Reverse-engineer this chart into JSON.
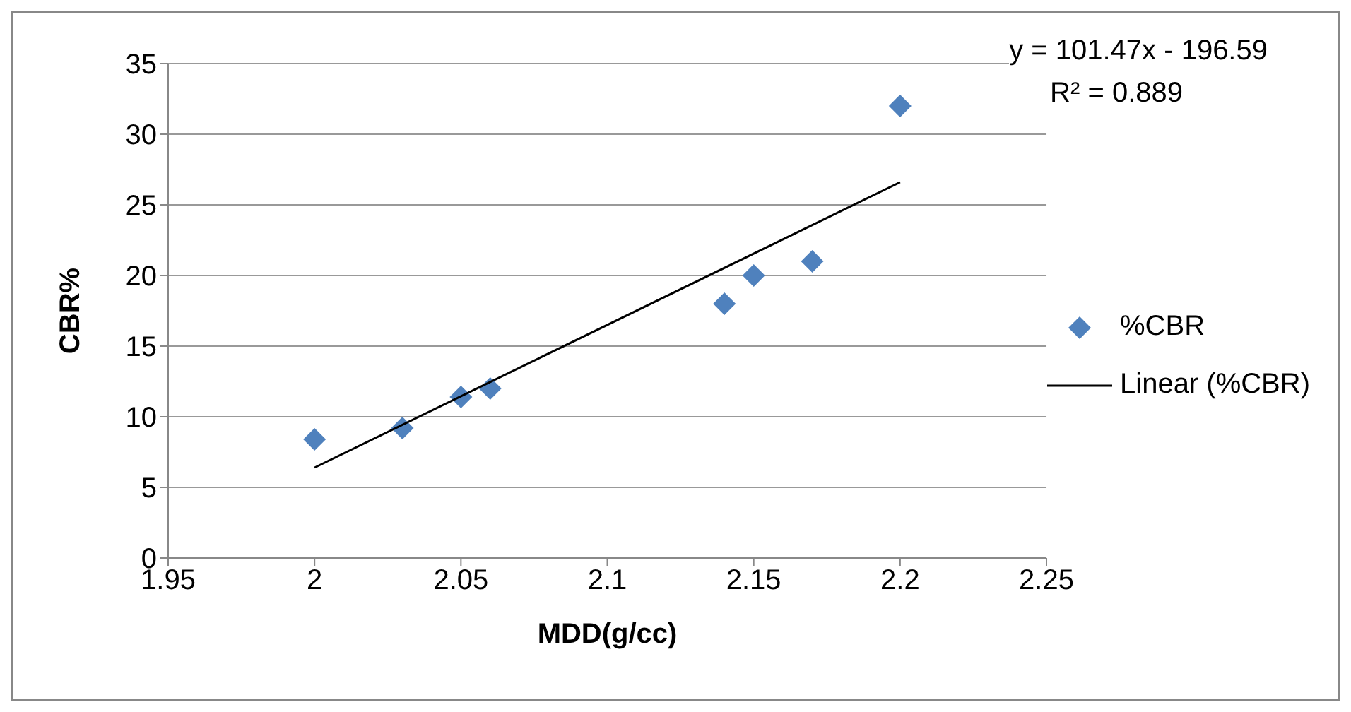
{
  "chart_data": {
    "type": "scatter",
    "xlabel": "MDD(g/cc)",
    "ylabel": "CBR%",
    "xlim": [
      1.95,
      2.25
    ],
    "xticks": [
      1.95,
      2,
      2.05,
      2.1,
      2.15,
      2.2,
      2.25
    ],
    "ylim": [
      0,
      35
    ],
    "yticks": [
      0,
      5,
      10,
      15,
      20,
      25,
      30,
      35
    ],
    "grid": "y",
    "legend": "right",
    "annotations": [
      "y = 101.47x - 196.59",
      "R² = 0.889"
    ],
    "series": [
      {
        "name": "%CBR",
        "color": "#4f81bd",
        "marker": "diamond",
        "x": [
          2.0,
          2.03,
          2.05,
          2.06,
          2.14,
          2.15,
          2.17,
          2.2
        ],
        "values": [
          8.4,
          9.2,
          11.4,
          12,
          18,
          20,
          21,
          32
        ]
      },
      {
        "name": "Linear (%CBR)",
        "type": "line",
        "color": "#000000",
        "marker": "none",
        "x": [
          2.0,
          2.2
        ],
        "values": [
          6.4,
          26.6
        ]
      }
    ]
  }
}
